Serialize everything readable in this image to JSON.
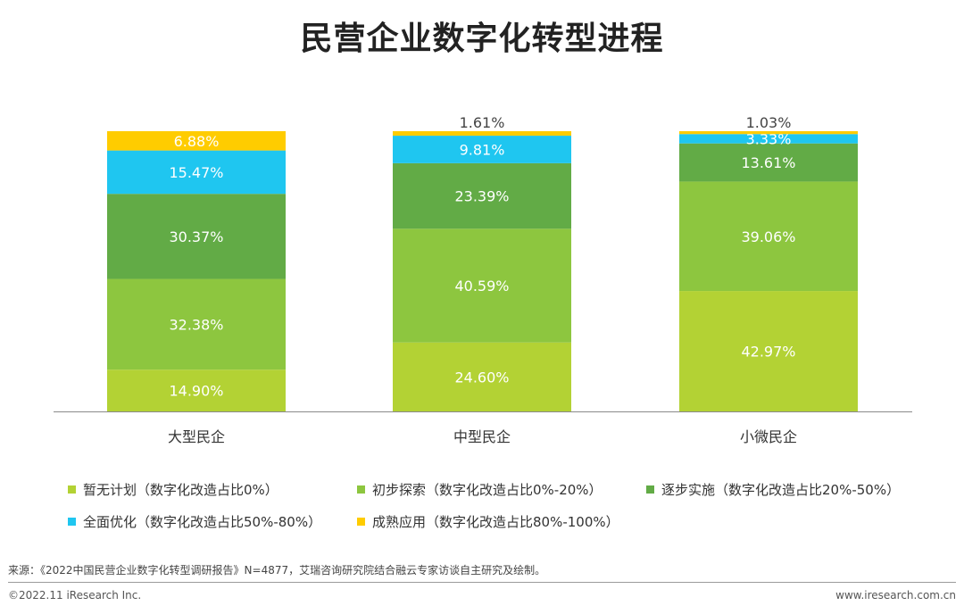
{
  "chart_data": {
    "type": "bar",
    "stacked": true,
    "title": "民营企业数字化转型进程",
    "categories": [
      "大型民企",
      "中型民企",
      "小微民企"
    ],
    "ylim": [
      0,
      100
    ],
    "grid": false,
    "legend_position": "bottom",
    "series": [
      {
        "name": "暂无计划（数字化改造占比0%）",
        "color": "#b3d234",
        "values": [
          14.9,
          24.6,
          42.97
        ],
        "labels": [
          "14.90%",
          "24.60%",
          "42.97%"
        ]
      },
      {
        "name": "初步探索（数字化改造占比0%-20%）",
        "color": "#8dc63f",
        "values": [
          32.38,
          40.59,
          39.06
        ],
        "labels": [
          "32.38%",
          "40.59%",
          "39.06%"
        ]
      },
      {
        "name": "逐步实施（数字化改造占比20%-50%）",
        "color": "#62ab46",
        "values": [
          30.37,
          23.39,
          13.61
        ],
        "labels": [
          "30.37%",
          "23.39%",
          "13.61%"
        ]
      },
      {
        "name": "全面优化（数字化改造占比50%-80%）",
        "color": "#1fc6f0",
        "values": [
          15.47,
          9.81,
          3.33
        ],
        "labels": [
          "15.47%",
          "9.81%",
          "3.33%"
        ]
      },
      {
        "name": "成熟应用（数字化改造占比80%-100%）",
        "color": "#ffcc00",
        "values": [
          6.88,
          1.61,
          1.03
        ],
        "labels": [
          "6.88%",
          "1.61%",
          "1.03%"
        ]
      }
    ]
  },
  "footer": {
    "source": "来源：《2022中国民营企业数字化转型调研报告》N=4877，艾瑞咨询研究院结合融云专家访谈自主研究及绘制。",
    "copyright": "©2022.11 iResearch Inc.",
    "website": "www.iresearch.com.cn"
  }
}
